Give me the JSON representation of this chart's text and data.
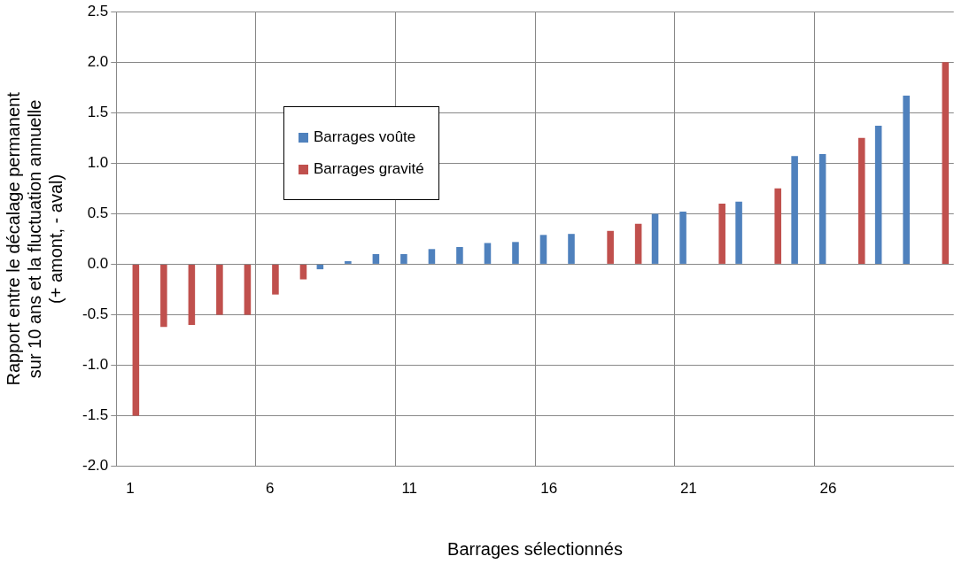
{
  "chart_data": {
    "type": "bar",
    "xlabel": "Barrages sélectionnés",
    "ylabel": "Rapport entre le décalage permanent\nsur 10 ans et la fluctuation annuelle\n(+ amont, - aval)",
    "categories": [
      "1",
      null,
      null,
      null,
      null,
      "6",
      null,
      null,
      null,
      null,
      "11",
      null,
      null,
      null,
      null,
      "16",
      null,
      null,
      null,
      null,
      "21",
      null,
      null,
      null,
      null,
      "26",
      null,
      null,
      null,
      null
    ],
    "series": [
      {
        "name": "Barrages voûte",
        "color": "#4f81bd",
        "values": [
          null,
          null,
          null,
          null,
          null,
          null,
          null,
          -0.05,
          0.03,
          0.1,
          0.1,
          0.15,
          0.17,
          0.21,
          0.22,
          0.29,
          0.3,
          null,
          null,
          0.5,
          0.52,
          null,
          0.62,
          null,
          1.07,
          1.09,
          null,
          1.37,
          1.67,
          null
        ]
      },
      {
        "name": "Barrages gravité",
        "color": "#c0504d",
        "values": [
          -1.5,
          -0.62,
          -0.6,
          -0.5,
          -0.5,
          -0.3,
          -0.15,
          null,
          null,
          null,
          null,
          null,
          null,
          null,
          null,
          null,
          null,
          0.33,
          0.4,
          null,
          null,
          0.6,
          null,
          0.75,
          null,
          null,
          1.25,
          null,
          null,
          2.0
        ]
      }
    ],
    "ylim": [
      -2,
      2.5
    ],
    "yticks": [
      {
        "value": -2,
        "label": "-2.0"
      },
      {
        "value": -1.5,
        "label": "-1.5"
      },
      {
        "value": -1,
        "label": "-1.0"
      },
      {
        "value": -0.5,
        "label": "-0.5"
      },
      {
        "value": 0,
        "label": "0.0"
      },
      {
        "value": 0.5,
        "label": "0.5"
      },
      {
        "value": 1,
        "label": "1.0"
      },
      {
        "value": 1.5,
        "label": "1.5"
      },
      {
        "value": 2,
        "label": "2.0"
      },
      {
        "value": 2.5,
        "label": "2.5"
      }
    ],
    "grid": true,
    "legend": "top left"
  }
}
